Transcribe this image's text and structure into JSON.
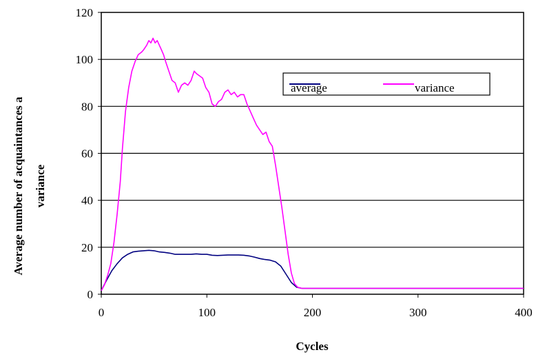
{
  "chart_data": {
    "type": "line",
    "title": "",
    "xlabel": "Cycles",
    "ylabel_lines": [
      "Average number of acquaintances a",
      "variance"
    ],
    "xlim": [
      0,
      400
    ],
    "ylim": [
      0,
      120
    ],
    "xticks": [
      0,
      100,
      200,
      300,
      400
    ],
    "yticks": [
      0,
      20,
      40,
      60,
      80,
      100,
      120
    ],
    "grid": "horizontal",
    "legend_position": "top-right",
    "series": [
      {
        "name": "average",
        "color": "#000080",
        "x": [
          0,
          5,
          10,
          15,
          20,
          25,
          30,
          35,
          40,
          45,
          50,
          55,
          60,
          65,
          70,
          75,
          80,
          85,
          90,
          95,
          100,
          105,
          110,
          115,
          120,
          125,
          130,
          135,
          140,
          145,
          150,
          155,
          160,
          165,
          170,
          175,
          180,
          185,
          190,
          195,
          200,
          250,
          300,
          350,
          400
        ],
        "y": [
          1.5,
          6,
          10,
          13,
          15.5,
          17,
          18,
          18.3,
          18.5,
          18.7,
          18.5,
          18,
          17.8,
          17.5,
          17,
          17,
          17,
          17,
          17.2,
          17,
          17,
          16.6,
          16.5,
          16.6,
          16.7,
          16.7,
          16.7,
          16.6,
          16.3,
          15.8,
          15.2,
          14.8,
          14.5,
          13.8,
          12,
          8.5,
          5,
          3,
          2.5,
          2.5,
          2.5,
          2.5,
          2.5,
          2.5,
          2.5
        ]
      },
      {
        "name": "variance",
        "color": "#ff00ff",
        "x": [
          0,
          3,
          6,
          9,
          12,
          15,
          18,
          20,
          23,
          26,
          29,
          32,
          35,
          38,
          40,
          43,
          45,
          47,
          49,
          51,
          53,
          55,
          57,
          59,
          61,
          64,
          67,
          70,
          73,
          76,
          79,
          82,
          85,
          88,
          90,
          93,
          96,
          99,
          102,
          105,
          108,
          111,
          114,
          117,
          120,
          123,
          126,
          129,
          132,
          135,
          138,
          141,
          144,
          147,
          150,
          153,
          156,
          159,
          162,
          165,
          168,
          171,
          174,
          177,
          180,
          183,
          186,
          190,
          195,
          200,
          250,
          300,
          350,
          400
        ],
        "y": [
          1.5,
          4,
          8,
          13,
          22,
          34,
          48,
          62,
          78,
          88,
          95,
          99,
          102,
          103,
          104,
          106,
          108,
          107,
          109,
          107,
          108,
          106,
          104,
          102,
          99,
          95,
          91,
          90,
          86,
          89,
          90,
          89,
          91,
          95,
          94,
          93,
          92,
          88,
          86,
          81,
          80,
          82,
          83,
          86,
          87,
          85,
          86,
          84,
          85,
          85,
          81,
          78,
          75,
          72,
          70,
          68,
          69,
          65,
          63,
          55,
          46,
          37,
          27,
          17,
          9,
          4.5,
          3,
          2.5,
          2.5,
          2.5,
          2.5,
          2.5,
          2.5,
          2.5
        ]
      }
    ]
  }
}
